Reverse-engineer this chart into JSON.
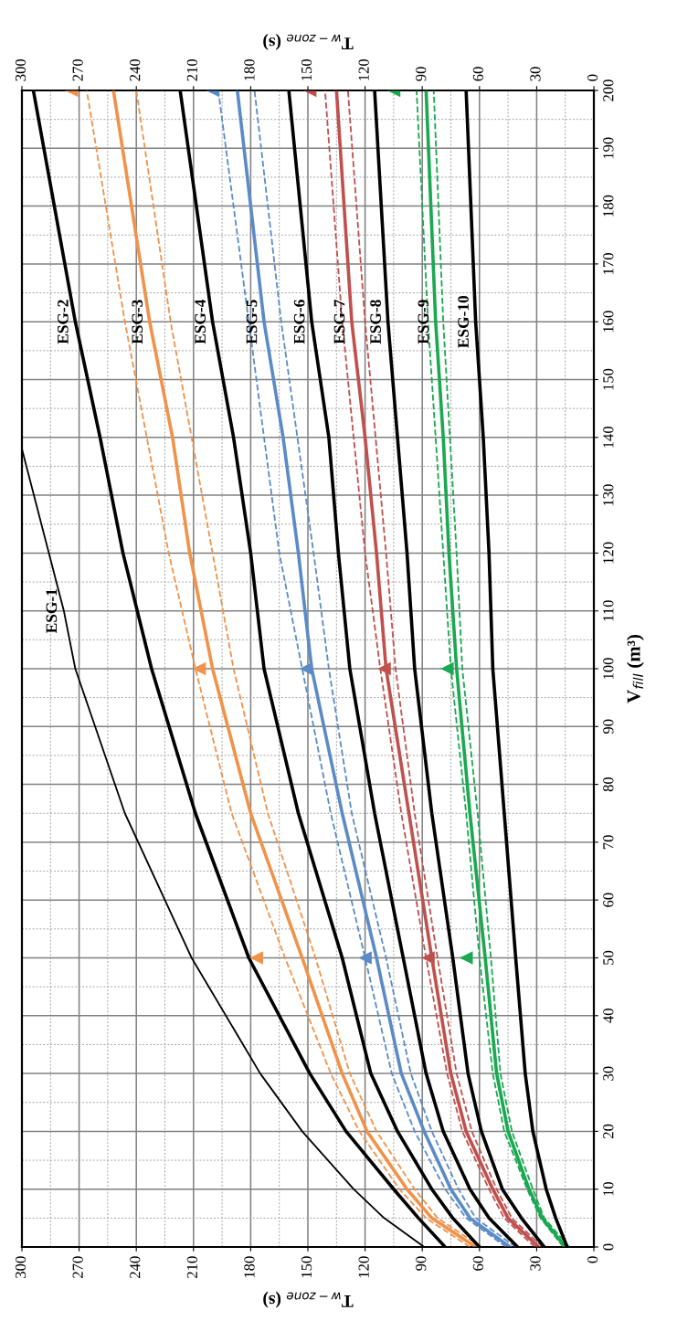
{
  "chart_data": {
    "type": "line",
    "xlabel": "T$_{w−zone}$ (s)",
    "x2label": "T$_{w−zone}$ (s)",
    "ylabel": "V$_{fill}$ (m³)",
    "xlim": [
      300,
      0
    ],
    "xticks": [
      0,
      30,
      60,
      90,
      120,
      150,
      180,
      210,
      240,
      270,
      300
    ],
    "x2lim": [
      300,
      0
    ],
    "x2ticks": [
      0,
      30,
      60,
      90,
      120,
      150,
      180,
      210,
      240,
      270,
      300
    ],
    "ylim": [
      0,
      200
    ],
    "yticks": [
      0,
      10,
      20,
      30,
      40,
      50,
      60,
      70,
      80,
      90,
      100,
      110,
      120,
      130,
      140,
      150,
      160,
      170,
      180,
      190,
      200
    ],
    "grid": true,
    "line_style": "solid",
    "series": [
      {
        "name": "ESG-1",
        "color": "#000000",
        "x": [
          89,
          110,
          126,
          153,
          175,
          211,
          246,
          272,
          278,
          300
        ],
        "values": [
          0,
          5,
          10,
          20,
          30,
          50,
          75,
          100,
          110,
          138
        ]
      },
      {
        "name": "ESG-2",
        "color": "#000000",
        "x": [
          78,
          92,
          105,
          130,
          149,
          181,
          209,
          232,
          247,
          259,
          272,
          294
        ],
        "values": [
          0,
          5,
          10,
          20,
          30,
          50,
          75,
          100,
          120,
          140,
          160,
          200
        ]
      },
      {
        "name": "ESG-3",
        "color": "#f0924a",
        "x": [
          62,
          85,
          98,
          119,
          132,
          153,
          180,
          200,
          212,
          221,
          233,
          252
        ],
        "values": [
          0,
          5,
          10,
          20,
          30,
          50,
          75,
          100,
          120,
          140,
          160,
          200
        ]
      },
      {
        "color": "#f0924a",
        "line_style": "dashed",
        "x": [
          65,
          88,
          102,
          123,
          138,
          162,
          190,
          209,
          223,
          246,
          266
        ],
        "values": [
          0,
          5,
          10,
          20,
          30,
          50,
          75,
          100,
          120,
          160,
          200
        ]
      },
      {
        "color": "#f0924a",
        "line_style": "dashed",
        "x": [
          59,
          82,
          94,
          114,
          128,
          146,
          171,
          189,
          200,
          222,
          240
        ],
        "values": [
          0,
          5,
          10,
          20,
          30,
          50,
          75,
          100,
          120,
          160,
          200
        ]
      },
      {
        "type": "scatter",
        "marker": "triangle",
        "color": "#f0924a",
        "x": [
          177,
          207,
          274
        ],
        "values": [
          50,
          100,
          200
        ]
      },
      {
        "name": "ESG-4",
        "color": "#000000",
        "x": [
          60,
          74,
          85,
          103,
          117,
          132,
          155,
          173,
          180,
          189,
          200,
          217
        ],
        "values": [
          0,
          5,
          10,
          20,
          30,
          50,
          75,
          100,
          120,
          140,
          160,
          200
        ]
      },
      {
        "name": "ESG-5",
        "color": "#5b8bc7",
        "x": [
          44,
          65,
          75,
          89,
          101,
          114,
          132,
          148,
          155,
          163,
          173,
          187
        ],
        "values": [
          0,
          5,
          10,
          20,
          30,
          50,
          75,
          100,
          120,
          140,
          160,
          200
        ]
      },
      {
        "color": "#5b8bc7",
        "line_style": "dashed",
        "x": [
          46,
          67,
          78,
          94,
          106,
          120,
          138,
          153,
          165,
          181,
          197
        ],
        "values": [
          0,
          5,
          10,
          20,
          30,
          50,
          75,
          100,
          120,
          160,
          200
        ]
      },
      {
        "color": "#5b8bc7",
        "line_style": "dashed",
        "x": [
          41,
          62,
          71,
          85,
          96,
          109,
          127,
          139,
          147,
          164,
          178
        ],
        "values": [
          0,
          5,
          10,
          20,
          30,
          50,
          75,
          100,
          120,
          160,
          200
        ]
      },
      {
        "type": "scatter",
        "marker": "triangle",
        "color": "#5b8bc7",
        "x": [
          120,
          151,
          200
        ],
        "values": [
          50,
          100,
          200
        ]
      },
      {
        "name": "ESG-6",
        "color": "#000000",
        "x": [
          40,
          55,
          65,
          79,
          88,
          100,
          115,
          128,
          134,
          139,
          148,
          160
        ],
        "values": [
          0,
          5,
          10,
          20,
          30,
          50,
          75,
          100,
          120,
          140,
          160,
          200
        ]
      },
      {
        "name": "ESG-7",
        "color": "#c0504d",
        "x": [
          29,
          45,
          53,
          67,
          75,
          85,
          97,
          109,
          114,
          120,
          127,
          135
        ],
        "values": [
          0,
          5,
          10,
          20,
          30,
          50,
          75,
          100,
          120,
          140,
          160,
          200
        ]
      },
      {
        "color": "#c0504d",
        "line_style": "dashed",
        "x": [
          31,
          47,
          55,
          69,
          77,
          88,
          101,
          112,
          120,
          132,
          141
        ],
        "values": [
          0,
          5,
          10,
          20,
          30,
          50,
          75,
          100,
          120,
          160,
          200
        ]
      },
      {
        "color": "#c0504d",
        "line_style": "dashed",
        "x": [
          27,
          43,
          51,
          64,
          72,
          82,
          94,
          104,
          109,
          120,
          129
        ],
        "values": [
          0,
          5,
          10,
          20,
          30,
          50,
          75,
          100,
          120,
          160,
          200
        ]
      },
      {
        "type": "scatter",
        "marker": "triangle",
        "color": "#c0504d",
        "x": [
          87,
          110,
          149
        ],
        "values": [
          50,
          100,
          200
        ]
      },
      {
        "name": "ESG-8",
        "color": "#000000",
        "x": [
          26,
          38,
          48,
          59,
          66,
          74,
          85,
          94,
          98,
          103,
          108,
          115
        ],
        "values": [
          0,
          5,
          10,
          20,
          30,
          50,
          75,
          100,
          120,
          140,
          160,
          200
        ]
      },
      {
        "name": "ESG-9",
        "color": "#1aa850",
        "x": [
          15,
          27,
          34,
          45,
          51,
          57,
          65,
          72,
          76,
          79,
          83,
          88
        ],
        "values": [
          0,
          5,
          10,
          20,
          30,
          50,
          75,
          100,
          120,
          140,
          160,
          200
        ]
      },
      {
        "color": "#1aa850",
        "line_style": "dashed",
        "x": [
          16,
          28,
          35,
          47,
          53,
          60,
          67,
          75,
          79,
          87,
          93
        ],
        "values": [
          0,
          5,
          10,
          20,
          30,
          50,
          75,
          100,
          120,
          160,
          200
        ]
      },
      {
        "color": "#1aa850",
        "line_style": "dashed",
        "x": [
          13,
          26,
          32,
          43,
          49,
          54,
          61,
          69,
          72,
          79,
          84
        ],
        "values": [
          0,
          5,
          10,
          20,
          30,
          50,
          75,
          100,
          120,
          160,
          200
        ]
      },
      {
        "type": "scatter",
        "marker": "triangle",
        "color": "#1aa850",
        "x": [
          67,
          77,
          105
        ],
        "values": [
          50,
          100,
          200
        ]
      },
      {
        "name": "ESG-10",
        "color": "#000000",
        "x": [
          14,
          20,
          25,
          32,
          36,
          41,
          47,
          53,
          55,
          58,
          62,
          67
        ],
        "values": [
          0,
          5,
          10,
          20,
          30,
          50,
          75,
          100,
          120,
          140,
          160,
          200
        ]
      }
    ]
  }
}
